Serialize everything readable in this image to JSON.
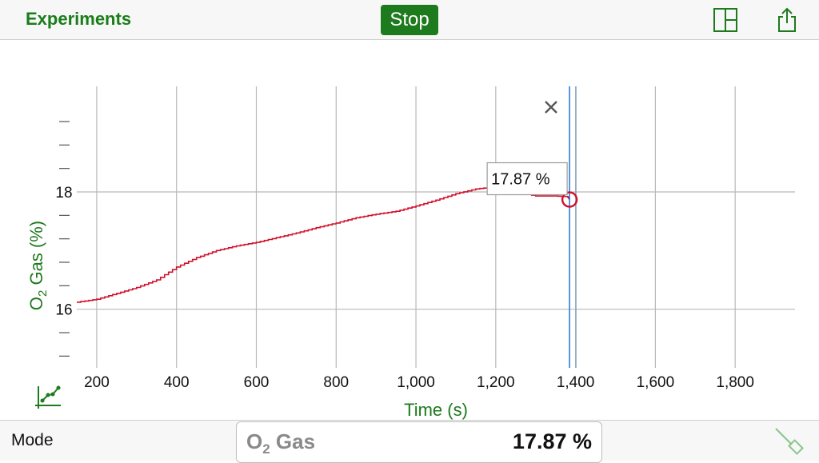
{
  "header": {
    "experiments_label": "Experiments",
    "stop_label": "Stop",
    "layout_icon": "layout-icon",
    "share_icon": "share-icon"
  },
  "colors": {
    "accent": "#1d7a1d",
    "trace": "#d0102a",
    "cursor": "#2f7fd8",
    "grid": "#b8b8b8"
  },
  "chart_data": {
    "type": "line",
    "xlabel": "Time (s)",
    "ylabel_parts": [
      "O",
      "2",
      " Gas (%)"
    ],
    "xlim": [
      150,
      1950
    ],
    "ylim": [
      15.0,
      19.8
    ],
    "x_ticks": [
      {
        "value": 200,
        "label": "200"
      },
      {
        "value": 400,
        "label": "400"
      },
      {
        "value": 600,
        "label": "600"
      },
      {
        "value": 800,
        "label": "800"
      },
      {
        "value": 1000,
        "label": "1,000"
      },
      {
        "value": 1200,
        "label": "1,200"
      },
      {
        "value": 1400,
        "label": "1,400"
      },
      {
        "value": 1600,
        "label": "1,600"
      },
      {
        "value": 1800,
        "label": "1,800"
      }
    ],
    "y_major_ticks": [
      {
        "value": 16,
        "label": "16"
      },
      {
        "value": 18,
        "label": "18"
      }
    ],
    "y_minor_ticks": [
      15.2,
      15.6,
      16.4,
      16.8,
      17.2,
      17.6,
      18.4,
      18.8,
      19.2
    ],
    "grid": true,
    "series": [
      {
        "x": [
          150,
          200,
          250,
          300,
          350,
          400,
          450,
          500,
          550,
          600,
          650,
          700,
          750,
          800,
          850,
          900,
          950,
          1000,
          1050,
          1100,
          1150,
          1200,
          1250,
          1300,
          1350,
          1380,
          1385
        ],
        "y": [
          16.12,
          16.17,
          16.27,
          16.37,
          16.5,
          16.72,
          16.88,
          17.0,
          17.08,
          17.14,
          17.22,
          17.3,
          17.39,
          17.47,
          17.56,
          17.62,
          17.67,
          17.76,
          17.86,
          17.97,
          18.05,
          18.09,
          18.0,
          17.93,
          17.93,
          17.92,
          17.87
        ]
      }
    ],
    "cursor": {
      "x": 1385,
      "y": 17.87,
      "label": "17.87 %"
    },
    "close_icon": "close-icon",
    "graph_tool_icon": "graph-tool-icon"
  },
  "footer": {
    "mode_label": "Mode",
    "meter_name_parts": [
      "O",
      "2",
      " Gas"
    ],
    "meter_value": "17.87 %",
    "probe_icon": "probe-icon"
  }
}
